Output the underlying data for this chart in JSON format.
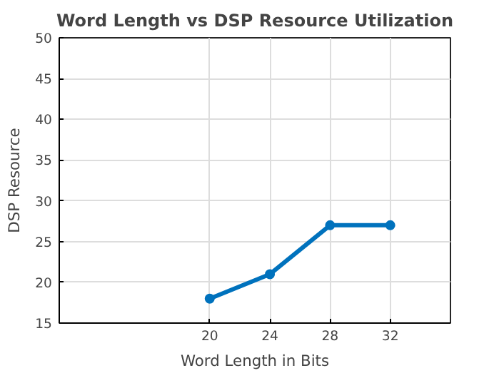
{
  "chart_data": {
    "type": "line",
    "title": "Word Length vs DSP Resource Utilization",
    "xlabel": "Word Length in Bits",
    "ylabel": "DSP Resource",
    "x": [
      20,
      24,
      28,
      32
    ],
    "series": [
      {
        "color": "#0072bd",
        "values": [
          18,
          21,
          27,
          27
        ]
      }
    ],
    "xlim": [
      10,
      36
    ],
    "xticks": [
      20,
      24,
      28,
      32
    ],
    "ylim": [
      15,
      50
    ],
    "yticks": [
      15,
      20,
      25,
      30,
      35,
      40,
      45,
      50
    ],
    "grid": true,
    "marker": "circle",
    "line_style": "solid"
  }
}
